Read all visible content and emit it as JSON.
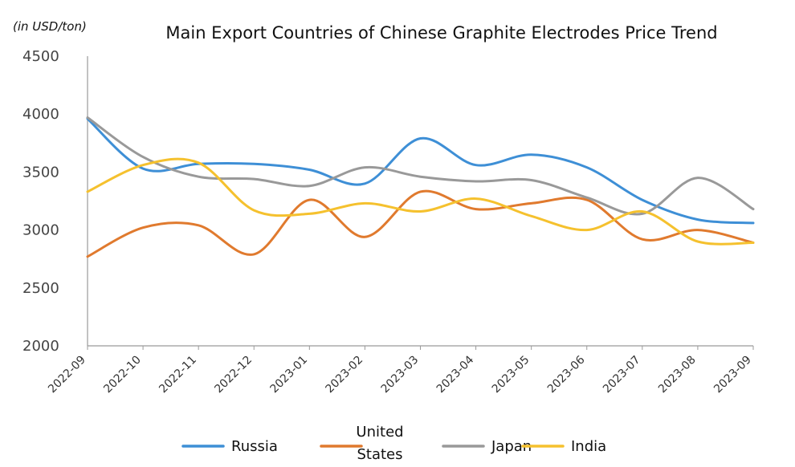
{
  "chart_data": {
    "type": "line",
    "title": "Main Export Countries of Chinese Graphite Electrodes Price Trend",
    "ylabel": "(in USD/ton)",
    "xlabel": "",
    "ylim": [
      2000,
      4500
    ],
    "yticks": [
      2000,
      2500,
      3000,
      3500,
      4000,
      4500
    ],
    "legend_position": "bottom",
    "grid": false,
    "categories": [
      "2022-09",
      "2022-10",
      "2022-11",
      "2022-12",
      "2023-01",
      "2023-02",
      "2023-03",
      "2023-04",
      "2023-05",
      "2023-06",
      "2023-07",
      "2023-08",
      "2023-09"
    ],
    "series": [
      {
        "name": "Russia",
        "color": "#3e8fd6",
        "values": [
          3960,
          3530,
          3570,
          3570,
          3520,
          3400,
          3790,
          3560,
          3650,
          3540,
          3260,
          3090,
          3060
        ]
      },
      {
        "name": "United States",
        "color": "#e07a2e",
        "values": [
          2770,
          3020,
          3040,
          2790,
          3260,
          2940,
          3330,
          3180,
          3230,
          3260,
          2920,
          3000,
          2890
        ]
      },
      {
        "name": "Japan",
        "color": "#999999",
        "values": [
          3970,
          3630,
          3460,
          3440,
          3380,
          3540,
          3460,
          3420,
          3430,
          3280,
          3140,
          3450,
          3180
        ]
      },
      {
        "name": "India",
        "color": "#f5c12e",
        "values": [
          3330,
          3560,
          3580,
          3170,
          3140,
          3230,
          3160,
          3270,
          3120,
          3000,
          3160,
          2900,
          2890
        ]
      }
    ]
  }
}
